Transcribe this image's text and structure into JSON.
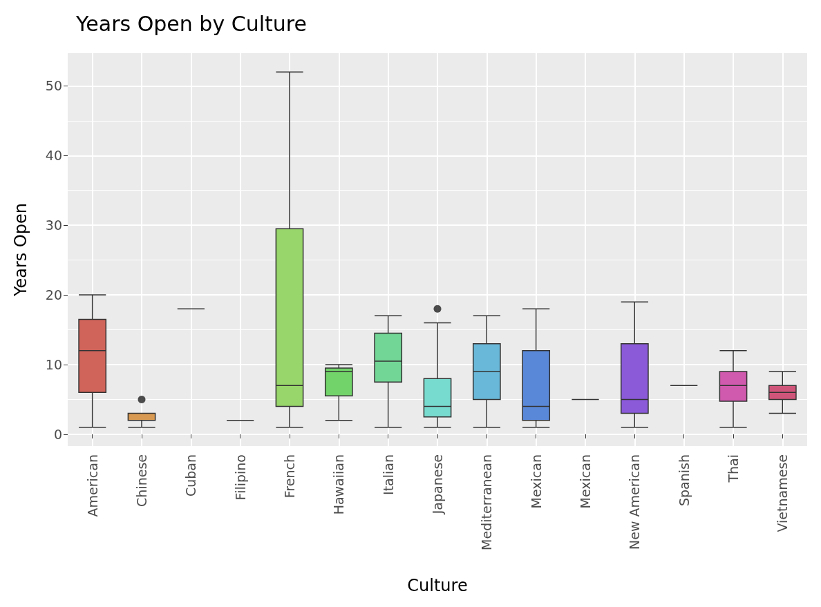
{
  "chart_data": {
    "type": "box",
    "title": "Years Open by Culture",
    "xlabel": "Culture",
    "ylabel": "Years Open",
    "categories": [
      "American",
      "Chinese",
      "Cuban",
      "Filipino",
      "French",
      "Hawaiian",
      "Italian",
      "Japanese",
      "Mediterranean",
      "Mexican",
      "Mexican",
      "New American",
      "Spanish",
      "Thai",
      "Vietnamese"
    ],
    "boxes": [
      {
        "low": 1,
        "q1": 6,
        "median": 12,
        "q3": 16.5,
        "high": 20
      },
      {
        "low": 1,
        "q1": 2,
        "median": 3,
        "q3": 3,
        "high": 3,
        "outliers": [
          5
        ]
      },
      {
        "low": 18,
        "q1": 18,
        "median": 18,
        "q3": 18,
        "high": 18
      },
      {
        "low": 2,
        "q1": 2,
        "median": 2,
        "q3": 2,
        "high": 2
      },
      {
        "low": 1,
        "q1": 4,
        "median": 7,
        "q3": 29.5,
        "high": 52
      },
      {
        "low": 2,
        "q1": 5.5,
        "median": 9,
        "q3": 9.5,
        "high": 10
      },
      {
        "low": 1,
        "q1": 7.5,
        "median": 10.5,
        "q3": 14.5,
        "high": 17
      },
      {
        "low": 1,
        "q1": 2.5,
        "median": 4,
        "q3": 8,
        "high": 16,
        "outliers": [
          18
        ]
      },
      {
        "low": 1,
        "q1": 5,
        "median": 9,
        "q3": 13,
        "high": 17
      },
      {
        "low": 1,
        "q1": 2,
        "median": 4,
        "q3": 12,
        "high": 18
      },
      {
        "low": 5,
        "q1": 5,
        "median": 5,
        "q3": 5,
        "high": 5
      },
      {
        "low": 1,
        "q1": 3,
        "median": 5,
        "q3": 13,
        "high": 19
      },
      {
        "low": 7,
        "q1": 7,
        "median": 7,
        "q3": 7,
        "high": 7
      },
      {
        "low": 1,
        "q1": 4.75,
        "median": 7,
        "q3": 9,
        "high": 12
      },
      {
        "low": 3,
        "q1": 5,
        "median": 6,
        "q3": 7,
        "high": 9
      }
    ],
    "colors": [
      "#d0645a",
      "#d89a52",
      "#333333",
      "#333333",
      "#98d56a",
      "#72d36a",
      "#72d696",
      "#78dbcf",
      "#6ab8d9",
      "#5a88d9",
      "#333333",
      "#8a5ad9",
      "#333333",
      "#d05aad",
      "#d0557a"
    ],
    "ylim": [
      -1.7,
      54.7
    ],
    "yticks": [
      0,
      10,
      20,
      30,
      40,
      50
    ],
    "grid": true
  }
}
